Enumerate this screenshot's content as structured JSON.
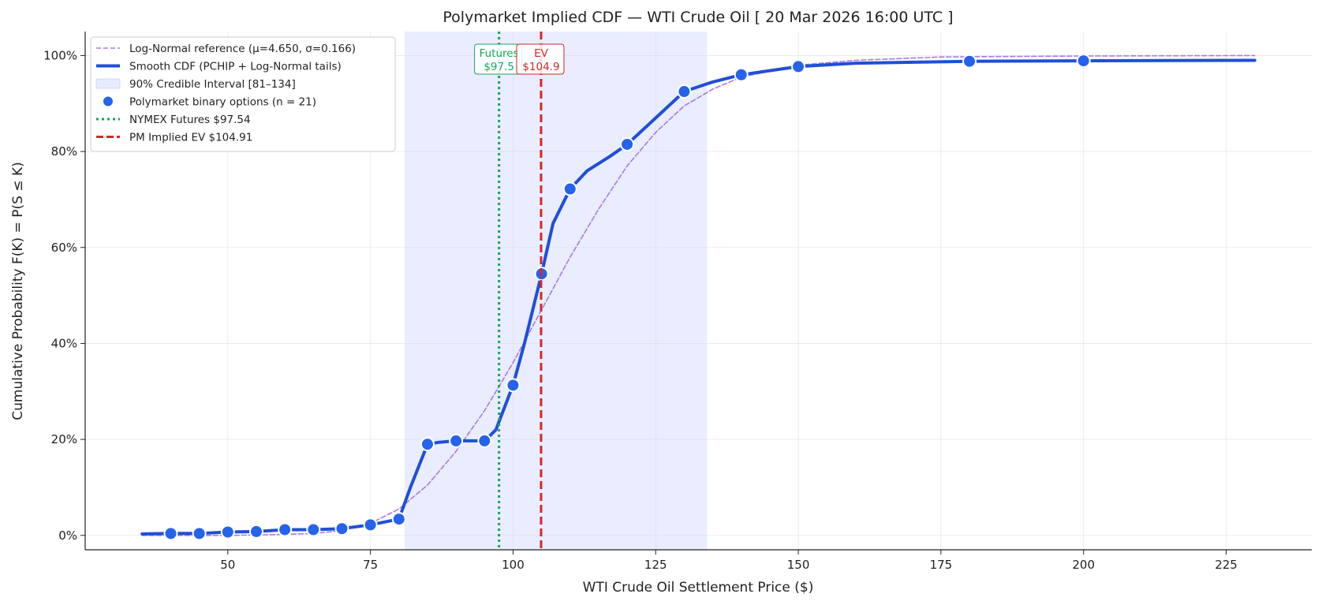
{
  "chart_data": {
    "type": "line",
    "title": "Polymarket Implied CDF — WTI Crude Oil  [ 20 Mar 2026 16:00 UTC ]",
    "xlabel": "WTI Crude Oil Settlement Price ($)",
    "ylabel": "Cumulative Probability  F(K) = P(S ≤ K)",
    "xlim": [
      25,
      240
    ],
    "ylim": [
      -0.03,
      1.05
    ],
    "x_ticks": [
      50,
      75,
      100,
      125,
      150,
      175,
      200,
      225
    ],
    "x_tick_labels": [
      "50",
      "75",
      "100",
      "125",
      "150",
      "175",
      "200",
      "225"
    ],
    "y_ticks": [
      0,
      0.2,
      0.4,
      0.6,
      0.8,
      1.0
    ],
    "y_tick_labels": [
      "0%",
      "20%",
      "40%",
      "60%",
      "80%",
      "100%"
    ],
    "grid": true,
    "legend_placement": "top-left",
    "colors": {
      "lognormal": "#a77be0",
      "smooth": "#1f4fd8",
      "ci_fill": "#e8ecff",
      "points": "#2563eb",
      "futures": "#1aa55a",
      "ev": "#d62728"
    },
    "series": [
      {
        "name": "Log-Normal reference  (μ=4.650, σ=0.166)",
        "kind": "line",
        "style": "dashed",
        "x": [
          35,
          50,
          60,
          65,
          70,
          75,
          80,
          85,
          90,
          95,
          100,
          105,
          110,
          115,
          120,
          125,
          130,
          135,
          140,
          150,
          160,
          175,
          200,
          230
        ],
        "y": [
          0.0,
          0.0,
          0.002,
          0.004,
          0.01,
          0.025,
          0.055,
          0.105,
          0.175,
          0.26,
          0.36,
          0.47,
          0.58,
          0.68,
          0.77,
          0.84,
          0.895,
          0.93,
          0.955,
          0.98,
          0.99,
          0.997,
          0.999,
          1.0
        ]
      },
      {
        "name": "Smooth CDF  (PCHIP + Log-Normal tails)",
        "kind": "line",
        "style": "solid",
        "x": [
          35,
          40,
          45,
          50,
          55,
          60,
          65,
          70,
          75,
          80,
          82,
          85,
          87,
          90,
          95,
          97,
          100,
          102,
          105,
          107,
          110,
          113,
          117,
          120,
          125,
          130,
          135,
          140,
          150,
          160,
          180,
          200,
          230
        ],
        "y": [
          0.003,
          0.004,
          0.004,
          0.007,
          0.008,
          0.012,
          0.012,
          0.014,
          0.022,
          0.034,
          0.1,
          0.19,
          0.194,
          0.197,
          0.197,
          0.22,
          0.313,
          0.4,
          0.545,
          0.65,
          0.722,
          0.76,
          0.79,
          0.815,
          0.87,
          0.925,
          0.945,
          0.96,
          0.977,
          0.984,
          0.988,
          0.989,
          0.99
        ]
      },
      {
        "name": "Polymarket binary options  (n = 21)",
        "kind": "scatter",
        "x": [
          40,
          45,
          50,
          55,
          60,
          65,
          70,
          75,
          80,
          85,
          90,
          95,
          100,
          105,
          110,
          120,
          130,
          140,
          150,
          180,
          200
        ],
        "y": [
          0.004,
          0.004,
          0.007,
          0.008,
          0.012,
          0.012,
          0.014,
          0.022,
          0.034,
          0.19,
          0.197,
          0.197,
          0.313,
          0.545,
          0.722,
          0.815,
          0.925,
          0.96,
          0.977,
          0.988,
          0.989
        ]
      }
    ],
    "credible_interval": {
      "name": "90% Credible Interval  [81–134]",
      "x_range": [
        81,
        134
      ]
    },
    "vlines": [
      {
        "name": "NYMEX Futures  $97.54",
        "x": 97.54,
        "style": "dotted",
        "annotation": [
          "Futures",
          "$97.5"
        ]
      },
      {
        "name": "PM Implied EV  $104.91",
        "x": 104.91,
        "style": "dashed",
        "annotation": [
          "EV",
          "$104.9"
        ]
      }
    ]
  }
}
